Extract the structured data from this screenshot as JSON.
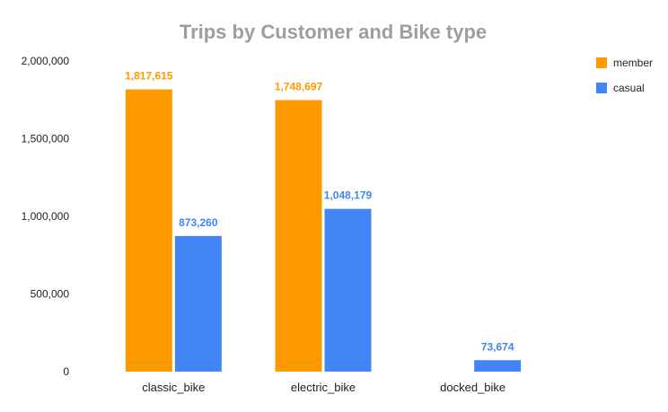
{
  "chart_data": {
    "type": "bar",
    "title": "Trips by Customer and Bike type",
    "xlabel": "",
    "ylabel": "",
    "categories": [
      "classic_bike",
      "electric_bike",
      "docked_bike"
    ],
    "series": [
      {
        "name": "member",
        "color": "#ff9900",
        "values": [
          1817615,
          1748697,
          null
        ],
        "labels": [
          "1,817,615",
          "1,748,697",
          ""
        ]
      },
      {
        "name": "casual",
        "color": "#4285f4",
        "values": [
          873260,
          1048179,
          73674
        ],
        "labels": [
          "873,260",
          "1,048,179",
          "73,674"
        ]
      }
    ],
    "ylim": [
      0,
      2000000
    ],
    "yticks": [
      0,
      500000,
      1000000,
      1500000,
      2000000
    ],
    "ytick_labels": [
      "0",
      "500,000",
      "1,000,000",
      "1,500,000",
      "2,000,000"
    ],
    "grid": false,
    "legend_position": "top-right"
  }
}
